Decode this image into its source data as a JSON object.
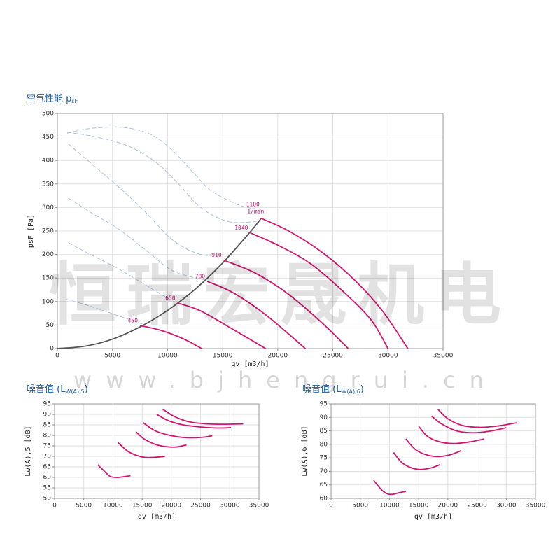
{
  "chart_data": [
    {
      "type": "line",
      "title": "空气性能 p",
      "title_sub": "sF",
      "title_end": "",
      "x_label": "qv [m3/h]",
      "y_label": "psF [Pa]",
      "speed_unit": "1/min",
      "xlim": [
        0,
        35000
      ],
      "xticks": [
        0,
        5000,
        10000,
        15000,
        20000,
        25000,
        30000,
        35000
      ],
      "ylim": [
        0,
        500
      ],
      "yticks": [
        0,
        50,
        100,
        150,
        200,
        250,
        300,
        350,
        400,
        450,
        500
      ],
      "grid": true,
      "series": [
        {
          "color": "#a9c3df",
          "style": "dashed",
          "x": [
            900,
            3000,
            6000,
            8500,
            10500,
            12500,
            14000,
            16500,
            18500
          ],
          "values": [
            458,
            468,
            470,
            455,
            420,
            370,
            335,
            305,
            295
          ]
        },
        {
          "color": "#a9c3df",
          "style": "dashed",
          "x": [
            900,
            3500,
            6500,
            9000,
            11000,
            13000,
            15500,
            18000
          ],
          "values": [
            460,
            450,
            430,
            395,
            350,
            300,
            270,
            270
          ]
        },
        {
          "color": "#a9c3df",
          "style": "dashed",
          "x": [
            1000,
            3000,
            5500,
            8000,
            10500,
            13000,
            15000
          ],
          "values": [
            435,
            395,
            345,
            290,
            230,
            200,
            200
          ]
        },
        {
          "color": "#a9c3df",
          "style": "dashed",
          "x": [
            1000,
            3000,
            5500,
            8000,
            10500,
            13500
          ],
          "values": [
            320,
            290,
            255,
            210,
            165,
            145
          ]
        },
        {
          "color": "#a9c3df",
          "style": "dashed",
          "x": [
            1000,
            3000,
            5500,
            8000,
            10500
          ],
          "values": [
            225,
            200,
            170,
            135,
            100
          ]
        },
        {
          "color": "#a9c3df",
          "style": "dashed",
          "x": [
            800,
            3000,
            5500,
            8000
          ],
          "values": [
            105,
            90,
            70,
            50
          ]
        },
        {
          "color": "#555555",
          "style": "solid",
          "x": [
            0,
            2500,
            5000,
            7500,
            10000,
            12500,
            15000,
            17500,
            18500
          ],
          "values": [
            0,
            5,
            20,
            46,
            81,
            126,
            182,
            248,
            277
          ]
        },
        {
          "name": "450",
          "color": "#d4146f",
          "style": "solid",
          "x": [
            7500,
            9500,
            11500,
            13100
          ],
          "values": [
            49,
            38,
            20,
            0
          ]
        },
        {
          "name": "650",
          "color": "#d4146f",
          "style": "solid",
          "x": [
            10900,
            13000,
            16000,
            18900
          ],
          "values": [
            97,
            80,
            40,
            0
          ]
        },
        {
          "name": "780",
          "color": "#d4146f",
          "style": "solid",
          "x": [
            13600,
            16000,
            19000,
            22500
          ],
          "values": [
            143,
            118,
            70,
            0
          ]
        },
        {
          "name": "910",
          "color": "#d4146f",
          "style": "solid",
          "x": [
            15100,
            18000,
            21000,
            24000,
            26400
          ],
          "values": [
            188,
            160,
            115,
            55,
            0
          ]
        },
        {
          "name": "1040",
          "color": "#d4146f",
          "style": "solid",
          "x": [
            17500,
            20000,
            23000,
            26000,
            28500,
            30000
          ],
          "values": [
            246,
            220,
            180,
            120,
            60,
            0
          ]
        },
        {
          "name": "1100",
          "color": "#d4146f",
          "style": "solid",
          "x": [
            18500,
            21000,
            24000,
            27000,
            29500,
            31800
          ],
          "values": [
            277,
            250,
            205,
            145,
            80,
            0
          ]
        }
      ]
    },
    {
      "type": "line",
      "title": "噪音值 (L",
      "title_sub": "W(A),5",
      "title_end": ")",
      "x_label": "qv [m3/h]",
      "y_label": "Lw(A),5 [dB]",
      "xlim": [
        0,
        35000
      ],
      "xticks": [
        0,
        5000,
        10000,
        15000,
        20000,
        25000,
        30000,
        35000
      ],
      "ylim": [
        50,
        95
      ],
      "yticks": [
        50,
        55,
        60,
        65,
        70,
        75,
        80,
        85,
        90,
        95
      ],
      "grid": true,
      "series": [
        {
          "color": "#d4146f",
          "style": "solid",
          "x": [
            7400,
            8500,
            9500,
            10500,
            11500,
            13000
          ],
          "values": [
            66,
            63,
            60.5,
            60,
            60.2,
            60.8
          ]
        },
        {
          "color": "#d4146f",
          "style": "solid",
          "x": [
            10900,
            12500,
            14000,
            15500,
            17000,
            18900
          ],
          "values": [
            76.5,
            72.5,
            70.5,
            69.5,
            69.5,
            70
          ]
        },
        {
          "color": "#d4146f",
          "style": "solid",
          "x": [
            14000,
            15500,
            17500,
            19500,
            21000,
            22600
          ],
          "values": [
            81.5,
            78,
            75.5,
            74.5,
            74.5,
            75.5
          ]
        },
        {
          "color": "#d4146f",
          "style": "solid",
          "x": [
            15200,
            17000,
            19000,
            22000,
            25000,
            27000
          ],
          "values": [
            86,
            82.5,
            80.5,
            79,
            79,
            79.8
          ]
        },
        {
          "color": "#d4146f",
          "style": "solid",
          "x": [
            17500,
            19500,
            22000,
            25000,
            28000,
            30200
          ],
          "values": [
            90,
            87,
            85,
            84,
            83.5,
            83.7
          ]
        },
        {
          "color": "#d4146f",
          "style": "solid",
          "x": [
            18500,
            20500,
            23000,
            26000,
            29000,
            32300
          ],
          "values": [
            92.5,
            89,
            86.5,
            85.5,
            85.3,
            85.5
          ]
        }
      ]
    },
    {
      "type": "line",
      "title": "噪音值 (L",
      "title_sub": "W(A),6",
      "title_end": ")",
      "x_label": "qv [m3/h]",
      "y_label": "Lw(A),6 [dB]",
      "xlim": [
        0,
        35000
      ],
      "xticks": [
        0,
        5000,
        10000,
        15000,
        20000,
        25000,
        30000,
        35000
      ],
      "ylim": [
        60,
        95
      ],
      "yticks": [
        60,
        65,
        70,
        75,
        80,
        85,
        90,
        95
      ],
      "grid": true,
      "series": [
        {
          "color": "#d4146f",
          "style": "solid",
          "x": [
            7300,
            8500,
            9500,
            10500,
            11500,
            12800
          ],
          "values": [
            66.7,
            63.5,
            61.8,
            61.5,
            62,
            62.6
          ]
        },
        {
          "color": "#d4146f",
          "style": "solid",
          "x": [
            10700,
            12000,
            13500,
            15200,
            17000,
            18700
          ],
          "values": [
            77,
            73.5,
            71.5,
            70.7,
            71.2,
            72.5
          ]
        },
        {
          "color": "#d4146f",
          "style": "solid",
          "x": [
            12800,
            14500,
            16500,
            18500,
            20500,
            22300
          ],
          "values": [
            82,
            78,
            76,
            75.5,
            76.2,
            77.7
          ]
        },
        {
          "color": "#d4146f",
          "style": "solid",
          "x": [
            15000,
            16500,
            18500,
            21000,
            24000,
            26200
          ],
          "values": [
            86.7,
            83,
            81,
            80.3,
            81,
            82
          ]
        },
        {
          "color": "#d4146f",
          "style": "solid",
          "x": [
            17200,
            19000,
            21500,
            24500,
            27500,
            30000
          ],
          "values": [
            90.5,
            87.5,
            85,
            84.3,
            85,
            86.2
          ]
        },
        {
          "color": "#d4146f",
          "style": "solid",
          "x": [
            18300,
            20000,
            22500,
            25500,
            28500,
            31800
          ],
          "values": [
            93,
            89.5,
            87,
            86.3,
            86.8,
            88
          ]
        }
      ]
    }
  ],
  "watermark": {
    "text": "恒瑞宏晟机电",
    "url": "www.bjhengrui.cn"
  }
}
